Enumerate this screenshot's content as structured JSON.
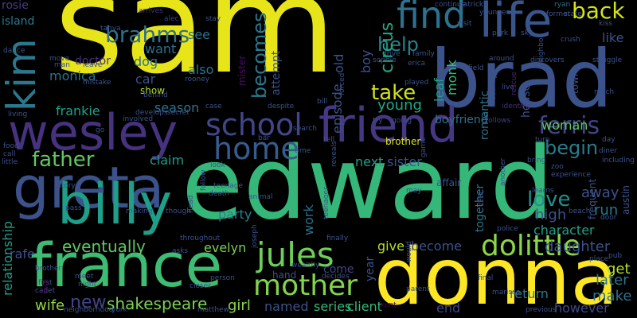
{
  "words": [
    {
      "text": "sam",
      "color": "#e7e419"
    },
    {
      "text": "edward",
      "color": "#35b779"
    },
    {
      "text": "brad",
      "color": "#3b528b"
    },
    {
      "text": "donna",
      "color": "#fde725"
    },
    {
      "text": "france",
      "color": "#3fbc73"
    },
    {
      "text": "wesley",
      "color": "#46327e"
    },
    {
      "text": "friend",
      "color": "#453781"
    },
    {
      "text": "greta",
      "color": "#3b528b"
    },
    {
      "text": "billy",
      "color": "#1f9e89"
    },
    {
      "text": "life",
      "color": "#39568c"
    },
    {
      "text": "find",
      "color": "#2c728e"
    },
    {
      "text": "school",
      "color": "#404688"
    },
    {
      "text": "home",
      "color": "#365c8d"
    },
    {
      "text": "jules",
      "color": "#6ece58"
    },
    {
      "text": "mother",
      "color": "#84d44b"
    },
    {
      "text": "dolittle",
      "color": "#8bd646"
    },
    {
      "text": "ferris",
      "color": "#414487"
    },
    {
      "text": "kim",
      "color": "#2a788e"
    },
    {
      "text": "back",
      "color": "#d2e21b"
    },
    {
      "text": "brahms",
      "color": "#2d708e"
    },
    {
      "text": "father",
      "color": "#5ec962"
    },
    {
      "text": "help",
      "color": "#25848e"
    },
    {
      "text": "take",
      "color": "#d0e11c"
    },
    {
      "text": "begin",
      "color": "#287c8e"
    },
    {
      "text": "love",
      "color": "#21918c"
    },
    {
      "text": "shakespeare",
      "color": "#7ad151"
    },
    {
      "text": "eventually",
      "color": "#5ec962"
    },
    {
      "text": "becomes",
      "color": "#2a788e"
    },
    {
      "text": "circus",
      "color": "#22a884"
    },
    {
      "text": "new",
      "color": "#414487"
    },
    {
      "text": "mister",
      "color": "#471063"
    },
    {
      "text": "episode",
      "color": "#3b528b"
    },
    {
      "text": "woman",
      "color": "#5ec962"
    },
    {
      "text": "leaf",
      "color": "#1fa187"
    },
    {
      "text": "monk",
      "color": "#35b779"
    },
    {
      "text": "romantic",
      "color": "#2c728e"
    },
    {
      "text": "like",
      "color": "#3b528b"
    },
    {
      "text": "house",
      "color": "#3b528b"
    },
    {
      "text": "next",
      "color": "#1f9e89"
    },
    {
      "text": "sister",
      "color": "#3b528b"
    },
    {
      "text": "young",
      "color": "#22a884"
    },
    {
      "text": "work",
      "color": "#2c728e"
    },
    {
      "text": "together",
      "color": "#2a788e"
    },
    {
      "text": "high",
      "color": "#3b528b"
    },
    {
      "text": "daughter",
      "color": "#3b528b"
    },
    {
      "text": "character",
      "color": "#1fa187"
    },
    {
      "text": "get",
      "color": "#b5de2b"
    },
    {
      "text": "later",
      "color": "#2a788e"
    },
    {
      "text": "make",
      "color": "#2c728e"
    },
    {
      "text": "return",
      "color": "#2a788e"
    },
    {
      "text": "however",
      "color": "#3e4a89"
    },
    {
      "text": "party",
      "color": "#26828e"
    },
    {
      "text": "give",
      "color": "#b5de2b"
    },
    {
      "text": "become",
      "color": "#3b528b"
    },
    {
      "text": "evelyn",
      "color": "#7ad151"
    },
    {
      "text": "girl",
      "color": "#86d549"
    },
    {
      "text": "named",
      "color": "#3b528b"
    },
    {
      "text": "series",
      "color": "#35b779"
    },
    {
      "text": "client",
      "color": "#35b779"
    },
    {
      "text": "end",
      "color": "#414487"
    },
    {
      "text": "year",
      "color": "#3b528b"
    },
    {
      "text": "come",
      "color": "#414487"
    },
    {
      "text": "hand",
      "color": "#3b528b"
    },
    {
      "text": "also",
      "color": "#2c728e"
    },
    {
      "text": "see",
      "color": "#2c728e"
    },
    {
      "text": "want",
      "color": "#2d708e"
    },
    {
      "text": "dog",
      "color": "#2d708e"
    },
    {
      "text": "monica",
      "color": "#2c728e"
    },
    {
      "text": "car",
      "color": "#3b528b"
    },
    {
      "text": "show",
      "color": "#addc30"
    },
    {
      "text": "frankie",
      "color": "#1fa187"
    },
    {
      "text": "season",
      "color": "#2c728e"
    },
    {
      "text": "claim",
      "color": "#1f9e89"
    },
    {
      "text": "rafe",
      "color": "#3b528b"
    },
    {
      "text": "wife",
      "color": "#8fd744"
    },
    {
      "text": "relationship",
      "color": "#1f9e89"
    },
    {
      "text": "doctor",
      "color": "#46327e"
    },
    {
      "text": "run",
      "color": "#2a788e"
    },
    {
      "text": "away",
      "color": "#3b528b"
    },
    {
      "text": "attempt",
      "color": "#3b528b"
    },
    {
      "text": "old",
      "color": "#3b528b"
    },
    {
      "text": "boy",
      "color": "#dae319"
    },
    {
      "text": "brother",
      "color": "#2c728e"
    },
    {
      "text": "boyfriend",
      "color": "#3b528b"
    },
    {
      "text": "affair",
      "color": "#2a788e"
    },
    {
      "text": "island",
      "color": "#433e85"
    },
    {
      "text": "rosie",
      "color": "#3b528b"
    },
    {
      "text": "tanya",
      "color": "#46327e"
    },
    {
      "text": "arrives",
      "color": "#433e85"
    },
    {
      "text": "alec",
      "color": "#3b528b"
    },
    {
      "text": "stay",
      "color": "#3b528b"
    },
    {
      "text": "continue",
      "color": "#3b528b"
    },
    {
      "text": "patrick",
      "color": "#2c728e"
    },
    {
      "text": "ryan",
      "color": "#3b528b"
    },
    {
      "text": "former",
      "color": "#3b528b"
    },
    {
      "text": "state",
      "color": "#3b528b"
    },
    {
      "text": "kiss",
      "color": "#3b528b"
    },
    {
      "text": "park",
      "color": "#3b528b"
    },
    {
      "text": "sky",
      "color": "#3b528b"
    },
    {
      "text": "crush",
      "color": "#3b528b"
    },
    {
      "text": "around",
      "color": "#3b528b"
    },
    {
      "text": "discovers",
      "color": "#3b528b"
    },
    {
      "text": "struggle",
      "color": "#482878"
    },
    {
      "text": "rescue",
      "color": "#3b528b"
    },
    {
      "text": "town",
      "color": "#3b528b"
    },
    {
      "text": "live",
      "color": "#3b528b"
    },
    {
      "text": "much",
      "color": "#46327e"
    },
    {
      "text": "identity",
      "color": "#433e85"
    },
    {
      "text": "follows",
      "color": "#3b528b"
    },
    {
      "text": "turn",
      "color": "#3b528b"
    },
    {
      "text": "day",
      "color": "#3b528b"
    },
    {
      "text": "diner",
      "color": "#3b528b"
    },
    {
      "text": "including",
      "color": "#3b528b"
    },
    {
      "text": "bring",
      "color": "#3b528b"
    },
    {
      "text": "zoo",
      "color": "#3b528b"
    },
    {
      "text": "experience",
      "color": "#3b528b"
    },
    {
      "text": "frequent",
      "color": "#3b528b"
    },
    {
      "text": "austin",
      "color": "#3b528b"
    },
    {
      "text": "real",
      "color": "#3b528b"
    },
    {
      "text": "learns",
      "color": "#3b528b"
    },
    {
      "text": "beach",
      "color": "#3b528b"
    },
    {
      "text": "door",
      "color": "#3b528b"
    },
    {
      "text": "police",
      "color": "#3b528b"
    },
    {
      "text": "place",
      "color": "#3b528b"
    },
    {
      "text": "pub",
      "color": "#3b528b"
    },
    {
      "text": "previous",
      "color": "#3b528b"
    },
    {
      "text": "marissa",
      "color": "#3b528b"
    },
    {
      "text": "parent",
      "color": "#440154"
    },
    {
      "text": "kent",
      "color": "#3b528b"
    },
    {
      "text": "would",
      "color": "#3b528b"
    },
    {
      "text": "final",
      "color": "#3b528b"
    },
    {
      "text": "decides",
      "color": "#3b528b"
    },
    {
      "text": "person",
      "color": "#3b528b"
    },
    {
      "text": "closer",
      "color": "#3b528b"
    },
    {
      "text": "matthew",
      "color": "#3b528b"
    },
    {
      "text": "neighborhood",
      "color": "#3b528b"
    },
    {
      "text": "york",
      "color": "#3b528b"
    },
    {
      "text": "night",
      "color": "#3b528b"
    },
    {
      "text": "first",
      "color": "#3b528b"
    },
    {
      "text": "cadet",
      "color": "#3b528b"
    },
    {
      "text": "meet",
      "color": "#3b528b"
    },
    {
      "text": "brother",
      "color": "#440154"
    },
    {
      "text": "face",
      "color": "#3b528b"
    },
    {
      "text": "pass",
      "color": "#3b528b"
    },
    {
      "text": "making",
      "color": "#3b528b"
    },
    {
      "text": "though",
      "color": "#3b528b"
    },
    {
      "text": "throughout",
      "color": "#3b528b"
    },
    {
      "text": "asks",
      "color": "#3b528b"
    },
    {
      "text": "wealthy",
      "color": "#3b528b"
    },
    {
      "text": "may",
      "color": "#3b528b"
    },
    {
      "text": "story",
      "color": "#3b528b"
    },
    {
      "text": "head",
      "color": "#3b528b"
    },
    {
      "text": "teenage",
      "color": "#3b528b"
    },
    {
      "text": "death",
      "color": "#3b528b"
    },
    {
      "text": "animal",
      "color": "#3b528b"
    },
    {
      "text": "teenager",
      "color": "#3b528b"
    },
    {
      "text": "finally",
      "color": "#3b528b"
    },
    {
      "text": "follow",
      "color": "#3b528b"
    },
    {
      "text": "look",
      "color": "#3b528b"
    },
    {
      "text": "joseph",
      "color": "#3b528b"
    },
    {
      "text": "little",
      "color": "#3b528b"
    },
    {
      "text": "call",
      "color": "#3b528b"
    },
    {
      "text": "go",
      "color": "#3b528b"
    },
    {
      "text": "involved",
      "color": "#3b528b"
    },
    {
      "text": "develops",
      "color": "#3b528b"
    },
    {
      "text": "secret",
      "color": "#3b528b"
    },
    {
      "text": "case",
      "color": "#3b528b"
    },
    {
      "text": "despite",
      "color": "#3b528b"
    },
    {
      "text": "bill",
      "color": "#3b528b"
    },
    {
      "text": "try",
      "color": "#3b528b"
    },
    {
      "text": "going",
      "color": "#3b528b"
    },
    {
      "text": "game",
      "color": "#3b528b"
    },
    {
      "text": "search",
      "color": "#3b528b"
    },
    {
      "text": "bar",
      "color": "#3b528b"
    },
    {
      "text": "time",
      "color": "#3b528b"
    },
    {
      "text": "tell",
      "color": "#3b528b"
    },
    {
      "text": "reveals",
      "color": "#3b528b"
    },
    {
      "text": "dance",
      "color": "#3b528b"
    },
    {
      "text": "move",
      "color": "#3b528b"
    },
    {
      "text": "man",
      "color": "#3b528b"
    },
    {
      "text": "leave",
      "color": "#3b528b"
    },
    {
      "text": "mistake",
      "color": "#3b528b"
    },
    {
      "text": "rooney",
      "color": "#3b528b"
    },
    {
      "text": "behind",
      "color": "#3b528b"
    },
    {
      "text": "living",
      "color": "#3b528b"
    },
    {
      "text": "food",
      "color": "#3b528b"
    },
    {
      "text": "drive",
      "color": "#3b528b"
    },
    {
      "text": "family",
      "color": "#3b528b"
    },
    {
      "text": "sophie",
      "color": "#3b528b"
    },
    {
      "text": "erica",
      "color": "#3b528b"
    },
    {
      "text": "played",
      "color": "#3b528b"
    },
    {
      "text": "visit",
      "color": "#3b528b"
    },
    {
      "text": "field",
      "color": "#3b528b"
    },
    {
      "text": "younger",
      "color": "#3b528b"
    },
    {
      "text": "neighbor",
      "color": "#3b528b"
    },
    {
      "text": "forced",
      "color": "#3b528b"
    },
    {
      "text": "recently",
      "color": "#3b528b"
    },
    {
      "text": "another",
      "color": "#3b528b"
    }
  ]
}
